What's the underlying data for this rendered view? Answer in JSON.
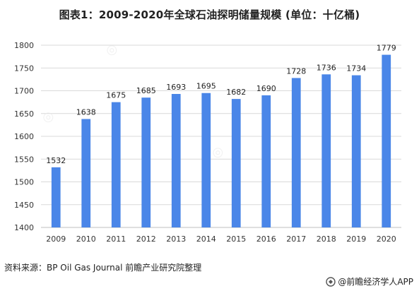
{
  "title": "图表1：2009-2020年全球石油探明储量规模 (单位：十亿桶)",
  "source": "资料来源：BP Oil Gas Journal 前瞻产业研究院整理",
  "brand": "@前瞻经济学人APP",
  "colors": {
    "bar": "#4a86e8",
    "grid": "#d9d9d9",
    "axis": "#bfbfbf"
  },
  "chart_data": {
    "type": "bar",
    "title": "图表1：2009-2020年全球石油探明储量规模 (单位：十亿桶)",
    "xlabel": "",
    "ylabel": "",
    "categories": [
      "2009",
      "2010",
      "2011",
      "2012",
      "2013",
      "2014",
      "2015",
      "2016",
      "2017",
      "2018",
      "2019",
      "2020"
    ],
    "values": [
      1532,
      1638,
      1675,
      1685,
      1693,
      1695,
      1682,
      1690,
      1728,
      1736,
      1734,
      1779
    ],
    "ylim": [
      1400,
      1800
    ],
    "yticks": [
      1400,
      1450,
      1500,
      1550,
      1600,
      1650,
      1700,
      1750,
      1800
    ],
    "grid": true,
    "legend": "none"
  }
}
